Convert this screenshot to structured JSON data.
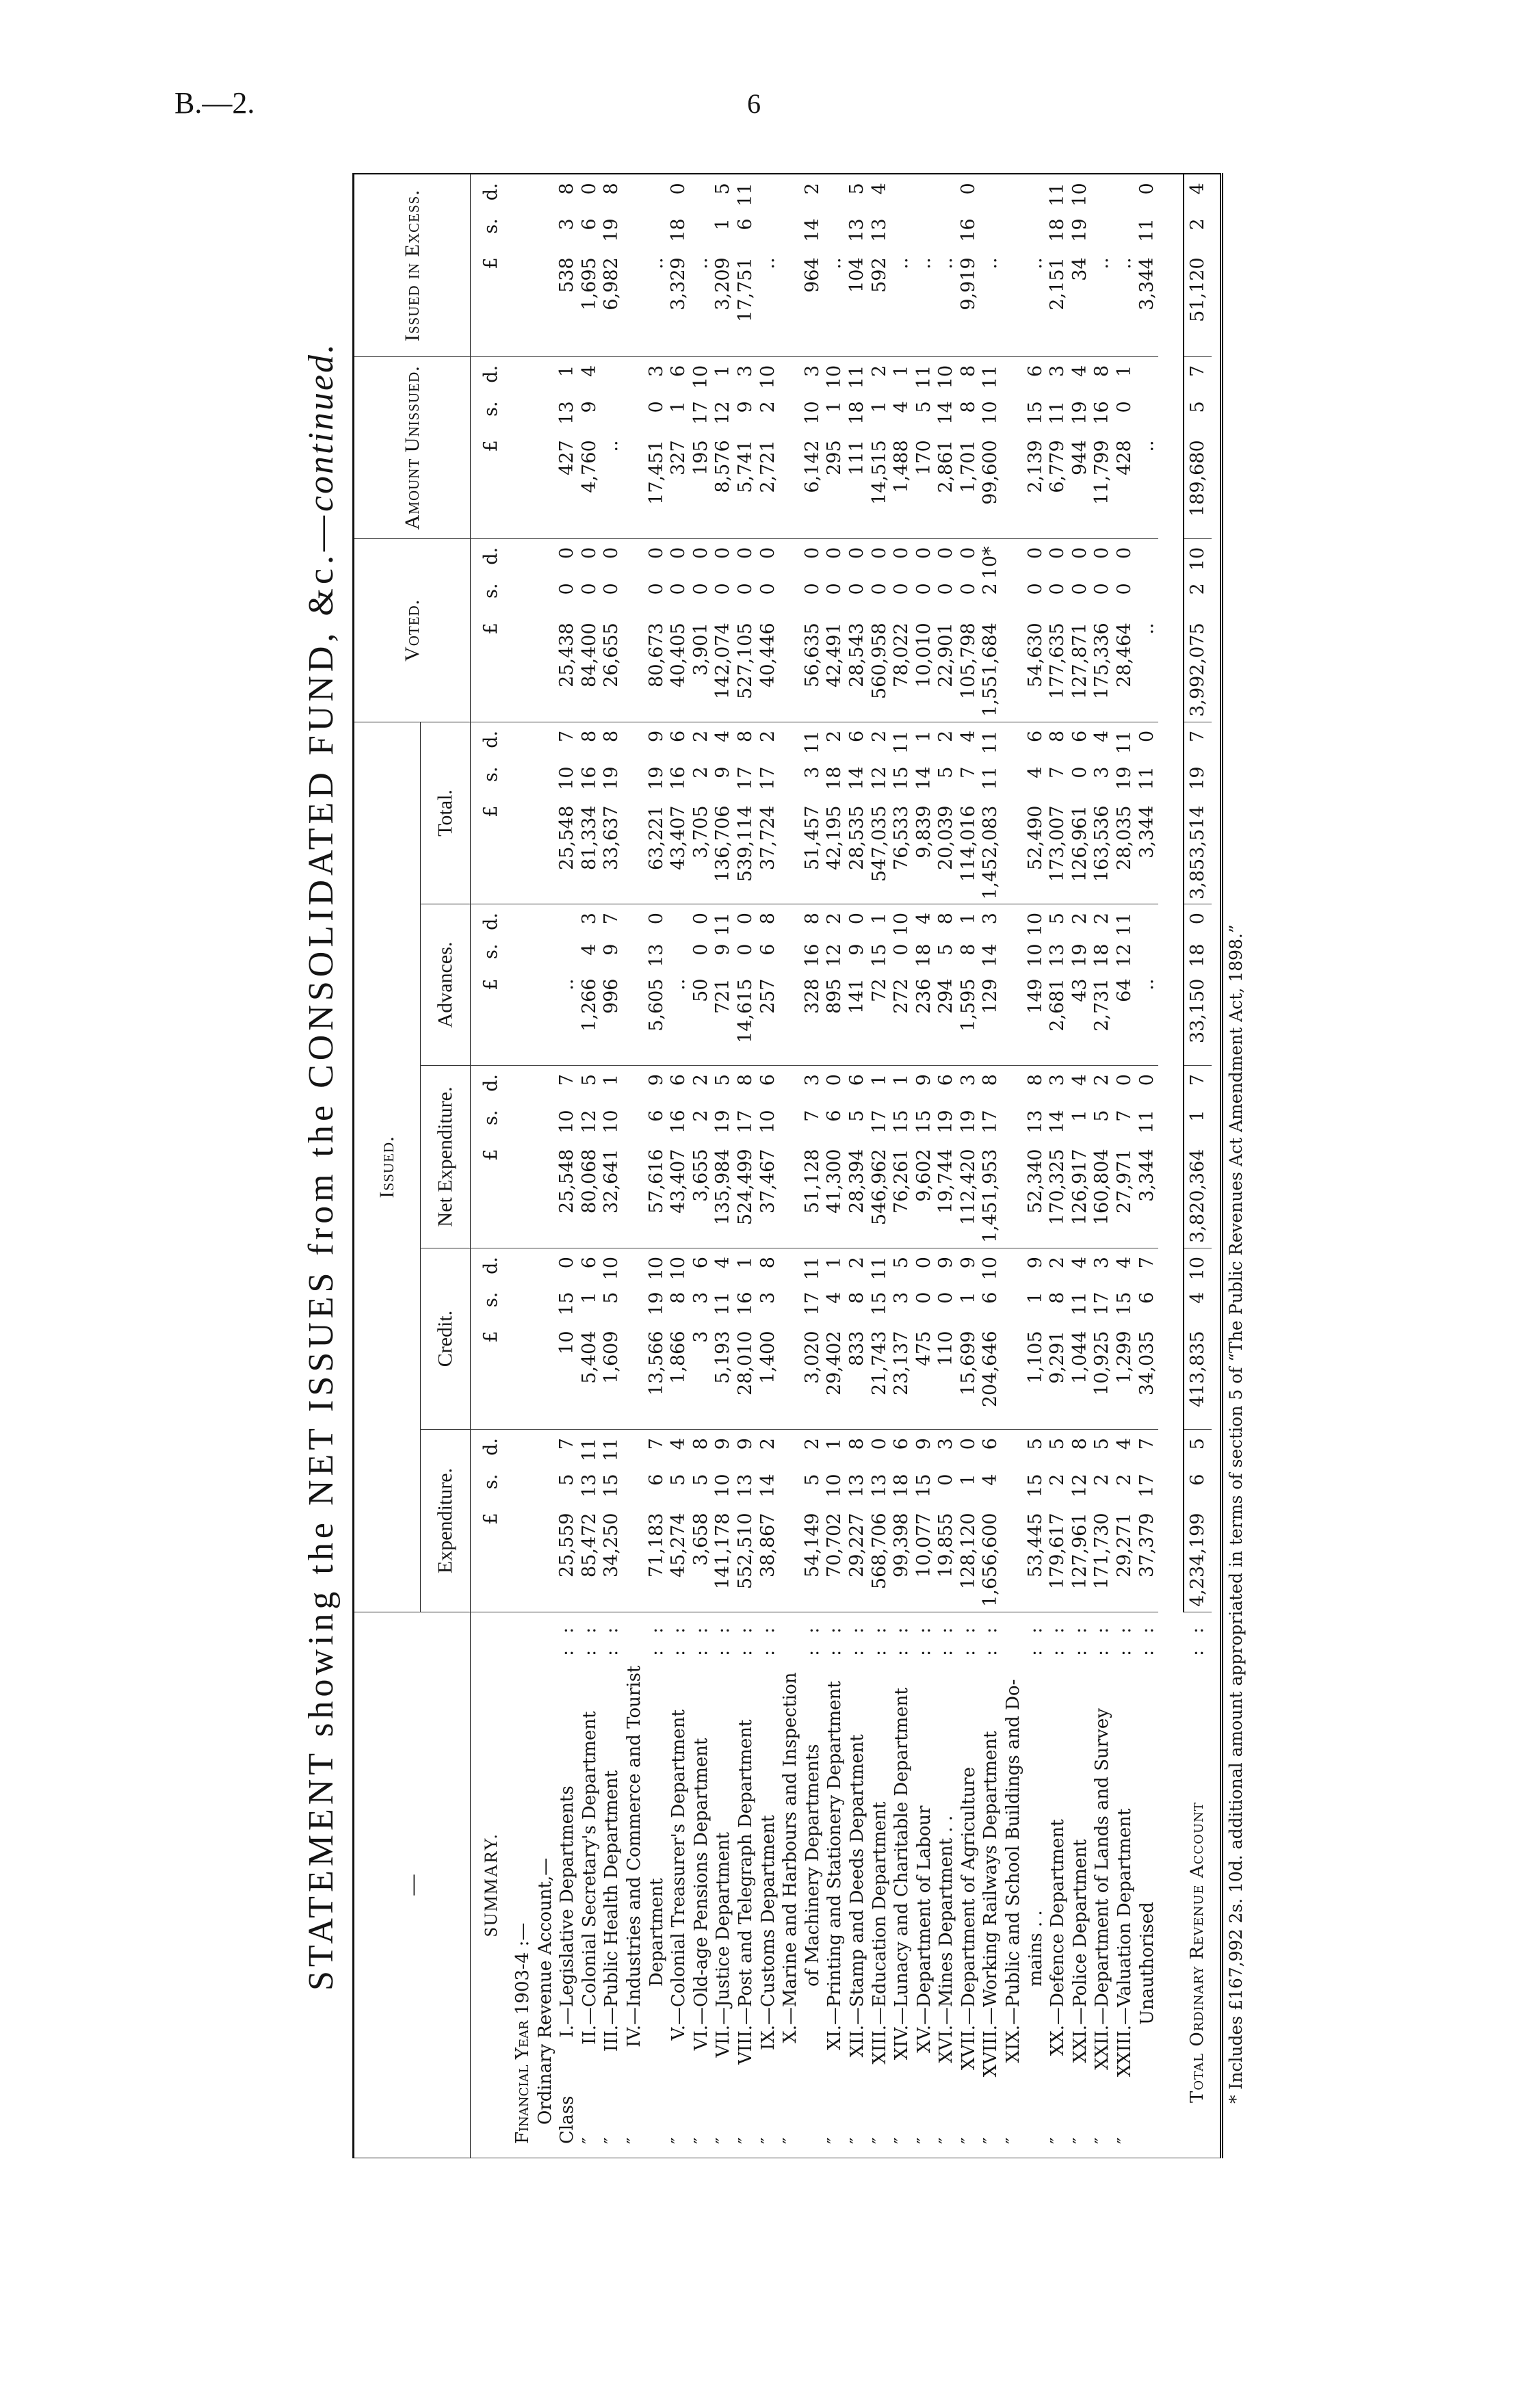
{
  "page": {
    "series": "B.—2.",
    "number": "6"
  },
  "title": {
    "main": "STATEMENT showing the NET ISSUES from the CONSOLIDATED FUND, &c.—",
    "italic": "continued."
  },
  "header": {
    "label_header": "—",
    "issued": "Issued.",
    "subcolumns": [
      "Expenditure.",
      "Credit.",
      "Net Expenditure.",
      "Advances.",
      "Total."
    ],
    "voted": "Voted.",
    "unissued": "Amount Unissued.",
    "excess": "Issued in Excess.",
    "units": [
      "£",
      "s.",
      "d."
    ]
  },
  "summary": {
    "heading": "SUMMARY.",
    "year": "Financial Year 1903-4 :—",
    "account": "Ordinary Revenue Account,—"
  },
  "columns": [
    "expenditure",
    "credit",
    "net_expenditure",
    "advances",
    "total",
    "voted",
    "unissued",
    "excess"
  ],
  "rows": [
    {
      "prefix": "Class",
      "num": "I.",
      "lines": [
        "—Legislative Departments"
      ],
      "leader": ": :",
      "values": [
        [
          "25,559",
          "5",
          "7"
        ],
        [
          "10",
          "15",
          "0"
        ],
        [
          "25,548",
          "10",
          "7"
        ],
        [
          "..",
          "",
          ""
        ],
        [
          "25,548",
          "10",
          "7"
        ],
        [
          "25,438",
          "0",
          "0"
        ],
        [
          "427",
          "13",
          "1"
        ],
        [
          "538",
          "3",
          "8"
        ]
      ]
    },
    {
      "prefix": "″",
      "num": "II.",
      "lines": [
        "—Colonial Secretary's Department"
      ],
      "leader": ": :",
      "values": [
        [
          "85,472",
          "13",
          "11"
        ],
        [
          "5,404",
          "1",
          "6"
        ],
        [
          "80,068",
          "12",
          "5"
        ],
        [
          "1,266",
          "4",
          "3"
        ],
        [
          "81,334",
          "16",
          "8"
        ],
        [
          "84,400",
          "0",
          "0"
        ],
        [
          "4,760",
          "9",
          "4"
        ],
        [
          "1,695",
          "6",
          "0"
        ]
      ]
    },
    {
      "prefix": "″",
      "num": "III.",
      "lines": [
        "—Public Health Department"
      ],
      "leader": ": :",
      "values": [
        [
          "34,250",
          "15",
          "11"
        ],
        [
          "1,609",
          "5",
          "10"
        ],
        [
          "32,641",
          "10",
          "1"
        ],
        [
          "996",
          "9",
          "7"
        ],
        [
          "33,637",
          "19",
          "8"
        ],
        [
          "26,655",
          "0",
          "0"
        ],
        [
          "..",
          "",
          ""
        ],
        [
          "6,982",
          "19",
          "8"
        ]
      ]
    },
    {
      "prefix": "″",
      "num": "IV.",
      "lines": [
        "—Industries and Commerce and Tourist",
        "Department"
      ],
      "leader": ": :",
      "values": [
        [
          "71,183",
          "6",
          "7"
        ],
        [
          "13,566",
          "19",
          "10"
        ],
        [
          "57,616",
          "6",
          "9"
        ],
        [
          "5,605",
          "13",
          "0"
        ],
        [
          "63,221",
          "19",
          "9"
        ],
        [
          "80,673",
          "0",
          "0"
        ],
        [
          "17,451",
          "0",
          "3"
        ],
        [
          "..",
          "",
          ""
        ]
      ]
    },
    {
      "prefix": "″",
      "num": "V.",
      "lines": [
        "—Colonial Treasurer's Department"
      ],
      "leader": ": :",
      "values": [
        [
          "45,274",
          "5",
          "4"
        ],
        [
          "1,866",
          "8",
          "10"
        ],
        [
          "43,407",
          "16",
          "6"
        ],
        [
          "..",
          "",
          ""
        ],
        [
          "43,407",
          "16",
          "6"
        ],
        [
          "40,405",
          "0",
          "0"
        ],
        [
          "327",
          "1",
          "6"
        ],
        [
          "3,329",
          "18",
          "0"
        ]
      ]
    },
    {
      "prefix": "″",
      "num": "VI.",
      "lines": [
        "—Old-age Pensions Department"
      ],
      "leader": ": :",
      "values": [
        [
          "3,658",
          "5",
          "8"
        ],
        [
          "3",
          "3",
          "6"
        ],
        [
          "3,655",
          "2",
          "2"
        ],
        [
          "50",
          "0",
          "0"
        ],
        [
          "3,705",
          "2",
          "2"
        ],
        [
          "3,901",
          "0",
          "0"
        ],
        [
          "195",
          "17",
          "10"
        ],
        [
          "..",
          "",
          ""
        ]
      ]
    },
    {
      "prefix": "″",
      "num": "VII.",
      "lines": [
        "—Justice Department"
      ],
      "leader": ": :",
      "values": [
        [
          "141,178",
          "10",
          "9"
        ],
        [
          "5,193",
          "11",
          "4"
        ],
        [
          "135,984",
          "19",
          "5"
        ],
        [
          "721",
          "9",
          "11"
        ],
        [
          "136,706",
          "9",
          "4"
        ],
        [
          "142,074",
          "0",
          "0"
        ],
        [
          "8,576",
          "12",
          "1"
        ],
        [
          "3,209",
          "1",
          "5"
        ]
      ]
    },
    {
      "prefix": "″",
      "num": "VIII.",
      "lines": [
        "—Post and Telegraph Department"
      ],
      "leader": ": :",
      "values": [
        [
          "552,510",
          "13",
          "9"
        ],
        [
          "28,010",
          "16",
          "1"
        ],
        [
          "524,499",
          "17",
          "8"
        ],
        [
          "14,615",
          "0",
          "0"
        ],
        [
          "539,114",
          "17",
          "8"
        ],
        [
          "527,105",
          "0",
          "0"
        ],
        [
          "5,741",
          "9",
          "3"
        ],
        [
          "17,751",
          "6",
          "11"
        ]
      ]
    },
    {
      "prefix": "″",
      "num": "IX.",
      "lines": [
        "—Customs Department"
      ],
      "leader": ": :",
      "values": [
        [
          "38,867",
          "14",
          "2"
        ],
        [
          "1,400",
          "3",
          "8"
        ],
        [
          "37,467",
          "10",
          "6"
        ],
        [
          "257",
          "6",
          "8"
        ],
        [
          "37,724",
          "17",
          "2"
        ],
        [
          "40,446",
          "0",
          "0"
        ],
        [
          "2,721",
          "2",
          "10"
        ],
        [
          "..",
          "",
          ""
        ]
      ]
    },
    {
      "prefix": "″",
      "num": "X.",
      "lines": [
        "—Marine and Harbours and Inspection",
        "of Machinery Departments"
      ],
      "leader": ": :",
      "values": [
        [
          "54,149",
          "5",
          "2"
        ],
        [
          "3,020",
          "17",
          "11"
        ],
        [
          "51,128",
          "7",
          "3"
        ],
        [
          "328",
          "16",
          "8"
        ],
        [
          "51,457",
          "3",
          "11"
        ],
        [
          "56,635",
          "0",
          "0"
        ],
        [
          "6,142",
          "10",
          "3"
        ],
        [
          "964",
          "14",
          "2"
        ]
      ]
    },
    {
      "prefix": "″",
      "num": "XI.",
      "lines": [
        "—Printing and Stationery Department"
      ],
      "leader": ": :",
      "values": [
        [
          "70,702",
          "10",
          "1"
        ],
        [
          "29,402",
          "4",
          "1"
        ],
        [
          "41,300",
          "6",
          "0"
        ],
        [
          "895",
          "12",
          "2"
        ],
        [
          "42,195",
          "18",
          "2"
        ],
        [
          "42,491",
          "0",
          "0"
        ],
        [
          "295",
          "1",
          "10"
        ],
        [
          "..",
          "",
          ""
        ]
      ]
    },
    {
      "prefix": "″",
      "num": "XII.",
      "lines": [
        "—Stamp and Deeds Department"
      ],
      "leader": ": :",
      "values": [
        [
          "29,227",
          "13",
          "8"
        ],
        [
          "833",
          "8",
          "2"
        ],
        [
          "28,394",
          "5",
          "6"
        ],
        [
          "141",
          "9",
          "0"
        ],
        [
          "28,535",
          "14",
          "6"
        ],
        [
          "28,543",
          "0",
          "0"
        ],
        [
          "111",
          "18",
          "11"
        ],
        [
          "104",
          "13",
          "5"
        ]
      ]
    },
    {
      "prefix": "″",
      "num": "XIII.",
      "lines": [
        "—Education Department"
      ],
      "leader": ": :",
      "values": [
        [
          "568,706",
          "13",
          "0"
        ],
        [
          "21,743",
          "15",
          "11"
        ],
        [
          "546,962",
          "17",
          "1"
        ],
        [
          "72",
          "15",
          "1"
        ],
        [
          "547,035",
          "12",
          "2"
        ],
        [
          "560,958",
          "0",
          "0"
        ],
        [
          "14,515",
          "1",
          "2"
        ],
        [
          "592",
          "13",
          "4"
        ]
      ]
    },
    {
      "prefix": "″",
      "num": "XIV.",
      "lines": [
        "—Lunacy and Charitable Department"
      ],
      "leader": ": :",
      "values": [
        [
          "99,398",
          "18",
          "6"
        ],
        [
          "23,137",
          "3",
          "5"
        ],
        [
          "76,261",
          "15",
          "1"
        ],
        [
          "272",
          "0",
          "10"
        ],
        [
          "76,533",
          "15",
          "11"
        ],
        [
          "78,022",
          "0",
          "0"
        ],
        [
          "1,488",
          "4",
          "1"
        ],
        [
          "..",
          "",
          ""
        ]
      ]
    },
    {
      "prefix": "″",
      "num": "XV.",
      "lines": [
        "—Department of Labour"
      ],
      "leader": ": :",
      "values": [
        [
          "10,077",
          "15",
          "9"
        ],
        [
          "475",
          "0",
          "0"
        ],
        [
          "9,602",
          "15",
          "9"
        ],
        [
          "236",
          "18",
          "4"
        ],
        [
          "9,839",
          "14",
          "1"
        ],
        [
          "10,010",
          "0",
          "0"
        ],
        [
          "170",
          "5",
          "11"
        ],
        [
          "..",
          "",
          ""
        ]
      ]
    },
    {
      "prefix": "″",
      "num": "XVI.",
      "lines": [
        "—Mines Department . ."
      ],
      "leader": ": :",
      "values": [
        [
          "19,855",
          "0",
          "3"
        ],
        [
          "110",
          "0",
          "9"
        ],
        [
          "19,744",
          "19",
          "6"
        ],
        [
          "294",
          "5",
          "8"
        ],
        [
          "20,039",
          "5",
          "2"
        ],
        [
          "22,901",
          "0",
          "0"
        ],
        [
          "2,861",
          "14",
          "10"
        ],
        [
          "..",
          "",
          ""
        ]
      ]
    },
    {
      "prefix": "″",
      "num": "XVII.",
      "lines": [
        "—Department of Agriculture"
      ],
      "leader": ": :",
      "values": [
        [
          "128,120",
          "1",
          "0"
        ],
        [
          "15,699",
          "1",
          "9"
        ],
        [
          "112,420",
          "19",
          "3"
        ],
        [
          "1,595",
          "8",
          "1"
        ],
        [
          "114,016",
          "7",
          "4"
        ],
        [
          "105,798",
          "0",
          "0"
        ],
        [
          "1,701",
          "8",
          "8"
        ],
        [
          "9,919",
          "16",
          "0"
        ]
      ]
    },
    {
      "prefix": "″",
      "num": "XVIII.",
      "lines": [
        "—Working Railways Department"
      ],
      "leader": ": :",
      "values": [
        [
          "1,656,600",
          "4",
          "6"
        ],
        [
          "204,646",
          "6",
          "10"
        ],
        [
          "1,451,953",
          "17",
          "8"
        ],
        [
          "129",
          "14",
          "3"
        ],
        [
          "1,452,083",
          "11",
          "11"
        ],
        [
          "1,551,684",
          "2",
          "10*"
        ],
        [
          "99,600",
          "10",
          "11"
        ],
        [
          "..",
          "",
          ""
        ]
      ]
    },
    {
      "prefix": "″",
      "num": "XIX.",
      "lines": [
        "—Public and School Buildings and Do-",
        "mains . ."
      ],
      "leader": ": :",
      "values": [
        [
          "53,445",
          "15",
          "5"
        ],
        [
          "1,105",
          "1",
          "9"
        ],
        [
          "52,340",
          "13",
          "8"
        ],
        [
          "149",
          "10",
          "10"
        ],
        [
          "52,490",
          "4",
          "6"
        ],
        [
          "54,630",
          "0",
          "0"
        ],
        [
          "2,139",
          "15",
          "6"
        ],
        [
          "..",
          "",
          ""
        ]
      ]
    },
    {
      "prefix": "″",
      "num": "XX.",
      "lines": [
        "—Defence Department"
      ],
      "leader": ": :",
      "values": [
        [
          "179,617",
          "2",
          "5"
        ],
        [
          "9,291",
          "8",
          "2"
        ],
        [
          "170,325",
          "14",
          "3"
        ],
        [
          "2,681",
          "13",
          "5"
        ],
        [
          "173,007",
          "7",
          "8"
        ],
        [
          "177,635",
          "0",
          "0"
        ],
        [
          "6,779",
          "11",
          "3"
        ],
        [
          "2,151",
          "18",
          "11"
        ]
      ]
    },
    {
      "prefix": "″",
      "num": "XXI.",
      "lines": [
        "—Police Department"
      ],
      "leader": ": :",
      "values": [
        [
          "127,961",
          "12",
          "8"
        ],
        [
          "1,044",
          "11",
          "4"
        ],
        [
          "126,917",
          "1",
          "4"
        ],
        [
          "43",
          "19",
          "2"
        ],
        [
          "126,961",
          "0",
          "6"
        ],
        [
          "127,871",
          "0",
          "0"
        ],
        [
          "944",
          "19",
          "4"
        ],
        [
          "34",
          "19",
          "10"
        ]
      ]
    },
    {
      "prefix": "″",
      "num": "XXII.",
      "lines": [
        "—Department of Lands and Survey"
      ],
      "leader": ": :",
      "values": [
        [
          "171,730",
          "2",
          "5"
        ],
        [
          "10,925",
          "17",
          "3"
        ],
        [
          "160,804",
          "5",
          "2"
        ],
        [
          "2,731",
          "18",
          "2"
        ],
        [
          "163,536",
          "3",
          "4"
        ],
        [
          "175,336",
          "0",
          "0"
        ],
        [
          "11,799",
          "16",
          "8"
        ],
        [
          "..",
          "",
          ""
        ]
      ]
    },
    {
      "prefix": "″",
      "num": "XXIII.",
      "lines": [
        "—Valuation Department"
      ],
      "leader": ": :",
      "values": [
        [
          "29,271",
          "2",
          "4"
        ],
        [
          "1,299",
          "15",
          "4"
        ],
        [
          "27,971",
          "7",
          "0"
        ],
        [
          "64",
          "12",
          "11"
        ],
        [
          "28,035",
          "19",
          "11"
        ],
        [
          "28,464",
          "0",
          "0"
        ],
        [
          "428",
          "0",
          "1"
        ],
        [
          "..",
          "",
          ""
        ]
      ]
    },
    {
      "prefix": "",
      "num": "",
      "lines": [
        "Unauthorised"
      ],
      "leader": ": :",
      "values": [
        [
          "37,379",
          "17",
          "7"
        ],
        [
          "34,035",
          "6",
          "7"
        ],
        [
          "3,344",
          "11",
          "0"
        ],
        [
          "..",
          "",
          ""
        ],
        [
          "3,344",
          "11",
          "0"
        ],
        [
          "..",
          "",
          ""
        ],
        [
          "..",
          "",
          ""
        ],
        [
          "3,344",
          "11",
          "0"
        ]
      ]
    }
  ],
  "total": {
    "label": "Total Ordinary Revenue Account",
    "leader": ": :",
    "values": [
      [
        "4,234,199",
        "6",
        "5"
      ],
      [
        "413,835",
        "4",
        "10"
      ],
      [
        "3,820,364",
        "1",
        "7"
      ],
      [
        "33,150",
        "18",
        "0"
      ],
      [
        "3,853,514",
        "19",
        "7"
      ],
      [
        "3,992,075",
        "2",
        "10"
      ],
      [
        "189,680",
        "5",
        "7"
      ],
      [
        "51,120",
        "2",
        "4"
      ]
    ]
  },
  "footnote": "* Includes £167,992 2s. 10d. additional amount appropriated in terms of section 5 of “The Public Revenues Act Amendment Act, 1898.”"
}
